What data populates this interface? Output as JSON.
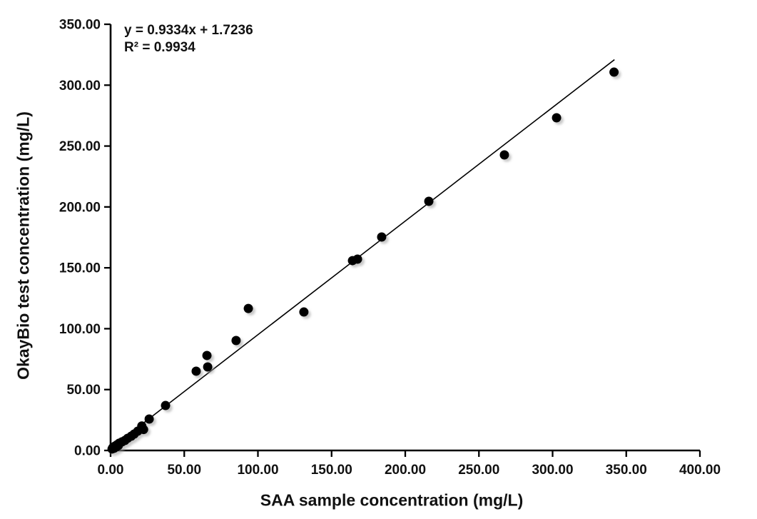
{
  "figure": {
    "background": "#ffffff",
    "text_color": "#111111"
  },
  "chart_data": {
    "type": "scatter",
    "title": "",
    "xlabel": "SAA sample concentration (mg/L)",
    "ylabel": "OkayBio test concentration (mg/L)",
    "xlim": [
      0,
      400
    ],
    "ylim": [
      0,
      350
    ],
    "x_tick_values": [
      0,
      50,
      100,
      150,
      200,
      250,
      300,
      350,
      400
    ],
    "x_tick_labels": [
      "0.00",
      "50.00",
      "100.00",
      "150.00",
      "200.00",
      "250.00",
      "300.00",
      "350.00",
      "400.00"
    ],
    "y_tick_values": [
      0,
      50,
      100,
      150,
      200,
      250,
      300,
      350
    ],
    "y_tick_labels": [
      "0.00",
      "50.00",
      "100.00",
      "150.00",
      "200.00",
      "250.00",
      "300.00",
      "350.00"
    ],
    "grid": false,
    "legend": "none",
    "marker": {
      "shape": "circle",
      "color": "#000000",
      "radius_px": 6.5,
      "shadow_color": "#9a9a9a"
    },
    "axis_color": "#000000",
    "points": [
      [
        1.0,
        1.2
      ],
      [
        1.5,
        2.3
      ],
      [
        2.4,
        1.8
      ],
      [
        2.9,
        3.5
      ],
      [
        3.9,
        2.9
      ],
      [
        4.4,
        4.7
      ],
      [
        5.3,
        4.1
      ],
      [
        5.8,
        5.9
      ],
      [
        7.7,
        7.0
      ],
      [
        9.7,
        8.2
      ],
      [
        11.6,
        10.0
      ],
      [
        14.0,
        11.7
      ],
      [
        16.0,
        13.5
      ],
      [
        18.4,
        15.8
      ],
      [
        21.2,
        20.1
      ],
      [
        22.4,
        17.2
      ],
      [
        26.2,
        25.8
      ],
      [
        37.3,
        36.9
      ],
      [
        58.1,
        65.1
      ],
      [
        65.4,
        78.0
      ],
      [
        65.9,
        68.6
      ],
      [
        85.2,
        90.3
      ],
      [
        93.5,
        116.6
      ],
      [
        131.2,
        113.7
      ],
      [
        164.2,
        155.9
      ],
      [
        167.6,
        157.1
      ],
      [
        184.0,
        175.3
      ],
      [
        216.0,
        204.6
      ],
      [
        267.3,
        242.7
      ],
      [
        302.7,
        273.2
      ],
      [
        341.7,
        310.7
      ]
    ],
    "trendline": {
      "slope": 0.9334,
      "intercept": 1.7236,
      "x_start": 0,
      "x_end": 342,
      "color": "#000000"
    },
    "annotation": {
      "equation": "y = 0.9334x + 1.7236",
      "r_squared": "R² = 0.9934"
    }
  }
}
